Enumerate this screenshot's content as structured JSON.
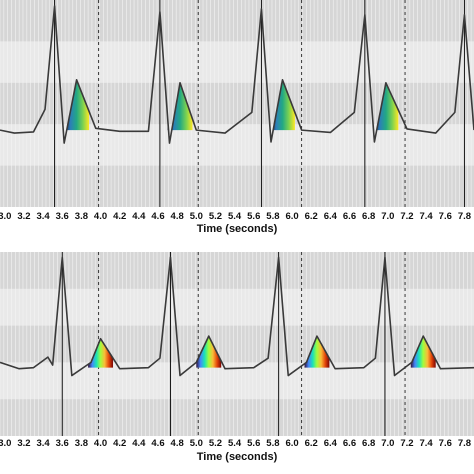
{
  "chart_data": [
    {
      "type": "line",
      "title": "",
      "xlabel": "Time (seconds)",
      "ylabel": "",
      "xlim": [
        2.95,
        7.9
      ],
      "ylim": [
        -1.3,
        2.2
      ],
      "x_ticks": [
        "3.0",
        "3.2",
        "3.4",
        "3.6",
        "3.8",
        "4.0",
        "4.2",
        "4.4",
        "4.6",
        "4.8",
        "5.0",
        "5.2",
        "5.4",
        "5.6",
        "5.8",
        "6.0",
        "6.2",
        "6.4",
        "6.6",
        "6.8",
        "7.0",
        "7.2",
        "7.4",
        "7.6",
        "7.8"
      ],
      "grid": true,
      "dashed_lines_x": [
        3.98,
        5.02,
        6.1,
        7.18
      ],
      "r_peaks": [
        3.52,
        4.62,
        5.68,
        6.76,
        7.8
      ],
      "t_wave_peaks": [
        3.75,
        4.83,
        5.9,
        6.98
      ],
      "colormap": [
        "#1e1a4a",
        "#2c7fb8",
        "#22a884",
        "#7ad151",
        "#fde725"
      ],
      "series": [
        {
          "values": {
            "x": [
              2.95,
              3.1,
              3.3,
              3.42,
              3.52,
              3.62,
              3.75,
              3.95,
              4.2,
              4.5,
              4.62,
              4.72,
              4.83,
              5.0,
              5.3,
              5.58,
              5.68,
              5.78,
              5.9,
              6.1,
              6.4,
              6.65,
              6.76,
              6.86,
              6.98,
              7.2,
              7.5,
              7.7,
              7.8,
              7.9
            ],
            "y": [
              0.0,
              -0.05,
              -0.03,
              0.35,
              2.1,
              -0.22,
              0.85,
              0.03,
              -0.02,
              -0.02,
              2.0,
              -0.22,
              0.8,
              0.0,
              -0.05,
              0.3,
              2.05,
              -0.2,
              0.85,
              0.0,
              -0.04,
              0.3,
              1.95,
              -0.2,
              0.8,
              0.02,
              -0.05,
              0.3,
              1.95,
              0.0
            ]
          }
        }
      ]
    },
    {
      "type": "line",
      "title": "",
      "xlabel": "Time (seconds)",
      "ylabel": "",
      "xlim": [
        2.95,
        7.9
      ],
      "ylim": [
        -1.3,
        2.2
      ],
      "x_ticks": [
        "3.0",
        "3.2",
        "3.4",
        "3.6",
        "3.8",
        "4.0",
        "4.2",
        "4.4",
        "4.6",
        "4.8",
        "5.0",
        "5.2",
        "5.4",
        "5.6",
        "5.8",
        "6.0",
        "6.2",
        "6.4",
        "6.6",
        "6.8",
        "7.0",
        "7.2",
        "7.4",
        "7.6",
        "7.8"
      ],
      "grid": true,
      "dashed_lines_x": [
        3.98,
        5.02,
        6.1,
        7.18
      ],
      "r_peaks": [
        3.6,
        4.73,
        5.86,
        6.97
      ],
      "t_wave_peaks": [
        4.0,
        5.13,
        6.26,
        7.37
      ],
      "colormap": [
        "#30123b",
        "#4686fb",
        "#1ae4b6",
        "#a2fc3c",
        "#fabb39",
        "#e4460a",
        "#7a0403"
      ],
      "series": [
        {
          "values": {
            "x": [
              2.95,
              3.15,
              3.3,
              3.45,
              3.5,
              3.6,
              3.7,
              3.9,
              4.0,
              4.2,
              4.5,
              4.62,
              4.73,
              4.83,
              5.0,
              5.13,
              5.3,
              5.6,
              5.75,
              5.86,
              5.96,
              6.15,
              6.26,
              6.45,
              6.75,
              6.87,
              6.97,
              7.07,
              7.25,
              7.37,
              7.55,
              7.9
            ],
            "y": [
              0.1,
              -0.02,
              0.0,
              0.2,
              0.05,
              2.1,
              -0.15,
              0.1,
              0.55,
              -0.02,
              0.0,
              0.18,
              2.1,
              -0.15,
              0.1,
              0.6,
              -0.02,
              0.0,
              0.18,
              2.1,
              -0.15,
              0.1,
              0.6,
              -0.02,
              0.0,
              0.18,
              2.1,
              -0.15,
              0.1,
              0.6,
              -0.02,
              0.0
            ]
          }
        }
      ]
    }
  ]
}
